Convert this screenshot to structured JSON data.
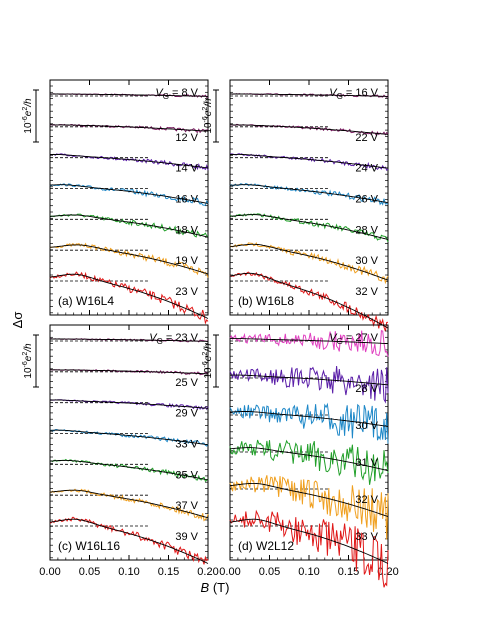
{
  "figure": {
    "ylabel": "Δσ",
    "xlabel": "B (T)",
    "xlabel_var": "B",
    "xlabel_unit": " (T)",
    "scalebar_label": "10",
    "scalebar_exp": "-6",
    "scalebar_unit": "e",
    "scalebar_unit_exp": "2",
    "scalebar_den": "/h",
    "vg_prefix_var": "V",
    "vg_prefix_sub": "G",
    "vg_prefix_eq": " = ",
    "colors": [
      "#7a1a60",
      "#5a1ea8",
      "#1e88c8",
      "#22a02a",
      "#f0a020",
      "#e01818"
    ],
    "magenta": "#e040c0",
    "x_ticks": [
      "0.00",
      "0.05",
      "0.10",
      "0.15",
      "0.20"
    ]
  },
  "chart_data": [
    {
      "type": "line",
      "panel_label": "(a) W16L4",
      "xlim": [
        0,
        0.2
      ],
      "x_ticks": [
        0,
        0.05,
        0.1,
        0.15,
        0.2
      ],
      "series": [
        {
          "name": "8 V",
          "first": true,
          "color": "#7a1a60",
          "peak": 0.0,
          "amp": 1.5,
          "noise": 0.03,
          "offset": 0.0,
          "label_at": 0.18
        },
        {
          "name": "12 V",
          "color": "#7a1a60",
          "peak": 0.0,
          "amp": 4.0,
          "noise": 0.05,
          "offset": 0.0
        },
        {
          "name": "14 V",
          "color": "#5a1ea8",
          "peak": 0.005,
          "amp": 8.0,
          "noise": 0.07,
          "offset": 0.0
        },
        {
          "name": "16 V",
          "color": "#1e88c8",
          "peak": 0.015,
          "amp": 12.0,
          "noise": 0.09,
          "offset": 0.0
        },
        {
          "name": "18 V",
          "color": "#22a02a",
          "peak": 0.03,
          "amp": 16.0,
          "noise": 0.1,
          "offset": 0.0
        },
        {
          "name": "19 V",
          "color": "#f0a020",
          "peak": 0.035,
          "amp": 22.0,
          "noise": 0.12,
          "offset": 0.0
        },
        {
          "name": "23 V",
          "color": "#e01818",
          "peak": 0.03,
          "amp": 32.0,
          "noise": 0.16,
          "offset": 0.0
        }
      ]
    },
    {
      "type": "line",
      "panel_label": "(b) W16L8",
      "xlim": [
        0,
        0.2
      ],
      "x_ticks": [
        0,
        0.05,
        0.1,
        0.15,
        0.2
      ],
      "series": [
        {
          "name": "16 V",
          "first": true,
          "color": "#7a1a60",
          "peak": 0.0,
          "amp": 1.5,
          "noise": 0.03
        },
        {
          "name": "22 V",
          "color": "#7a1a60",
          "peak": 0.0,
          "amp": 6.0,
          "noise": 0.05
        },
        {
          "name": "24 V",
          "color": "#5a1ea8",
          "peak": 0.01,
          "amp": 8.5,
          "noise": 0.07
        },
        {
          "name": "26 V",
          "color": "#1e88c8",
          "peak": 0.02,
          "amp": 12.0,
          "noise": 0.09
        },
        {
          "name": "28 V",
          "color": "#22a02a",
          "peak": 0.03,
          "amp": 18.0,
          "noise": 0.1
        },
        {
          "name": "30 V",
          "color": "#f0a020",
          "peak": 0.03,
          "amp": 26.0,
          "noise": 0.13
        },
        {
          "name": "32 V",
          "color": "#e01818",
          "peak": 0.025,
          "amp": 38.0,
          "noise": 0.16
        }
      ]
    },
    {
      "type": "line",
      "panel_label": "(c) W16L16",
      "xlim": [
        0,
        0.2
      ],
      "x_ticks": [
        0,
        0.05,
        0.1,
        0.15,
        0.2
      ],
      "series": [
        {
          "name": "23 V",
          "first": true,
          "color": "#7a1a60",
          "peak": 0.0,
          "amp": 1.5,
          "noise": 0.03
        },
        {
          "name": "25 V",
          "color": "#7a1a60",
          "peak": 0.0,
          "amp": 2.5,
          "noise": 0.04
        },
        {
          "name": "29 V",
          "color": "#5a1ea8",
          "peak": 0.005,
          "amp": 5.0,
          "noise": 0.05
        },
        {
          "name": "33 V",
          "color": "#1e88c8",
          "peak": 0.01,
          "amp": 9.0,
          "noise": 0.07
        },
        {
          "name": "35 V",
          "color": "#22a02a",
          "peak": 0.02,
          "amp": 13.0,
          "noise": 0.08
        },
        {
          "name": "37 V",
          "color": "#f0a020",
          "peak": 0.03,
          "amp": 20.0,
          "noise": 0.1
        },
        {
          "name": "39 V",
          "color": "#e01818",
          "peak": 0.03,
          "amp": 32.0,
          "noise": 0.14
        }
      ]
    },
    {
      "type": "line",
      "panel_label": "(d) W2L12",
      "xlim": [
        0,
        0.2
      ],
      "x_ticks": [
        0,
        0.05,
        0.1,
        0.15,
        0.2
      ],
      "series": [
        {
          "name": "27 V",
          "first": true,
          "color": "#e040c0",
          "peak": 0.005,
          "amp": 3.0,
          "noise": 0.35
        },
        {
          "name": "28 V",
          "color": "#5a1ea8",
          "peak": 0.01,
          "amp": 6.0,
          "noise": 0.5
        },
        {
          "name": "30 V",
          "color": "#1e88c8",
          "peak": 0.02,
          "amp": 10.0,
          "noise": 0.55
        },
        {
          "name": "31 V",
          "color": "#22a02a",
          "peak": 0.025,
          "amp": 16.0,
          "noise": 0.6
        },
        {
          "name": "32 V",
          "color": "#f0a020",
          "peak": 0.03,
          "amp": 24.0,
          "noise": 0.65
        },
        {
          "name": "33 V",
          "color": "#e01818",
          "peak": 0.03,
          "amp": 32.0,
          "noise": 0.7
        }
      ]
    }
  ]
}
